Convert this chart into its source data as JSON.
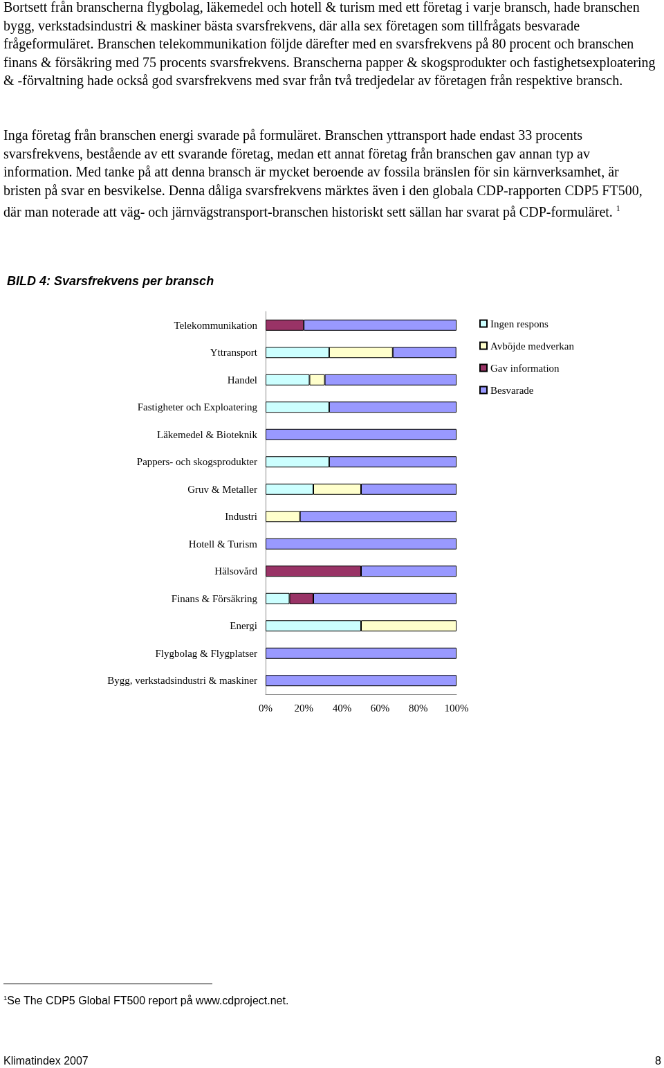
{
  "chart_data": {
    "type": "bar",
    "title": "BILD 4: Svarsfrekvens per bransch",
    "orientation": "horizontal",
    "stacked": true,
    "legend": "right",
    "categories": [
      "Telekommunikation",
      "Yttransport",
      "Handel",
      "Fastigheter och Exploatering",
      "Läkemedel & Bioteknik",
      "Pappers- och skogsprodukter",
      "Gruv & Metaller",
      "Industri",
      "Hotell & Turism",
      "Hälsovård",
      "Finans & Försäkring",
      "Energi",
      "Flygbolag & Flygplatser",
      "Bygg, verkstadsindustri & maskiner"
    ],
    "series": [
      {
        "name": "Ingen respons",
        "color": "#ccffff",
        "values": [
          null,
          33.3,
          23,
          33.3,
          null,
          33.3,
          25,
          null,
          null,
          null,
          12.5,
          50,
          null,
          null
        ]
      },
      {
        "name": "Avböjde medverkan",
        "color": "#ffffcc",
        "values": [
          null,
          33.3,
          8,
          null,
          null,
          null,
          25,
          18,
          null,
          null,
          null,
          50,
          null,
          null
        ]
      },
      {
        "name": "Gav information",
        "color": "#993366",
        "values": [
          20,
          null,
          null,
          null,
          null,
          null,
          null,
          null,
          null,
          50,
          12.5,
          null,
          null,
          null
        ]
      },
      {
        "name": "Besvarade",
        "color": "#9999ff",
        "values": [
          80,
          33.3,
          69,
          66.7,
          100,
          66.7,
          50,
          82,
          100,
          50,
          75,
          null,
          100,
          100
        ]
      }
    ],
    "xlim": [
      0,
      100
    ],
    "xticks": [
      {
        "value": 0,
        "label": "0%"
      },
      {
        "value": 20,
        "label": "20%"
      },
      {
        "value": 40,
        "label": "40%"
      },
      {
        "value": 60,
        "label": "60%"
      },
      {
        "value": 80,
        "label": "80%"
      },
      {
        "value": 100,
        "label": "100%"
      }
    ],
    "annotations": [
      "Bortsett från branscherna flygbolag, läkemedel och hotell & turism med ett företag i varje bransch, hade branschen bygg, verkstadsindustri & maskiner bästa svarsfrekvens, där alla sex företagen som tillfrågats besvarade frågeformuläret. Branschen telekommunikation följde därefter med en svarsfrekvens på 80 procent och branschen finans & försäkring med 75 procents svarsfrekvens. Branscherna papper & skogsprodukter och fastighetsexploatering & -förvaltning hade också god svarsfrekvens med svar från två tredjedelar av företagen från respektive bransch.",
      "Inga företag från branschen energi svarade på formuläret. Branschen yttransport hade endast 33 procents svarsfrekvens, bestående av ett svarande företag, medan ett annat företag från branschen gav annan typ av information. Med tanke på att denna bransch är mycket beroende av fossila bränslen för sin kärnverksamhet, är bristen på svar en besvikelse. Denna dåliga svarsfrekvens märktes även i den globala CDP-rapporten CDP5 FT500, där man noterade att väg- och järnvägstransport-branschen historiskt sett sällan har svarat på CDP-formuläret. $^{1}$",
      "$^{1}$Se The CDP5 Global FT500 report på www.cdproject.net.",
      "Klimatindex 2007",
      "8"
    ]
  }
}
